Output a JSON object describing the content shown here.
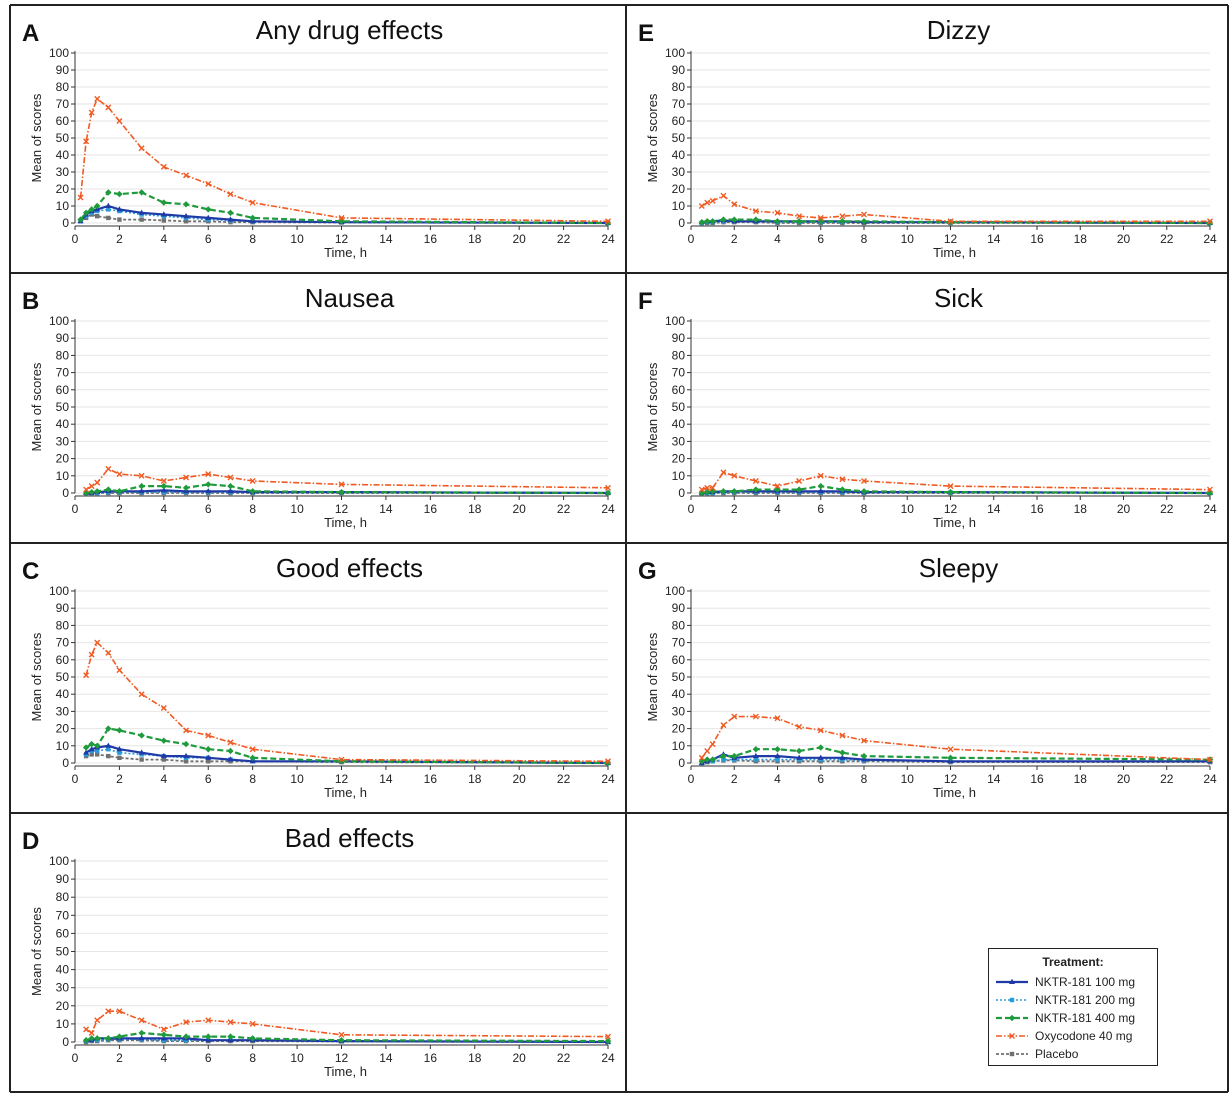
{
  "legend": {
    "title": "Treatment:",
    "items": [
      {
        "label": "NKTR-181 100 mg",
        "color": "#1f3aa6",
        "dash": "",
        "marker": "triangle",
        "width": 2.2
      },
      {
        "label": "NKTR-181 200 mg",
        "color": "#2a9ad9",
        "dash": "2,2",
        "marker": "square",
        "width": 1.6
      },
      {
        "label": "NKTR-181 400 mg",
        "color": "#1f9a3c",
        "dash": "6,3",
        "marker": "diamond",
        "width": 2.2
      },
      {
        "label": "Oxycodone 40 mg",
        "color": "#f05a22",
        "dash": "6,2,1.5,2",
        "marker": "x",
        "width": 1.6
      },
      {
        "label": "Placebo",
        "color": "#707070",
        "dash": "3,2",
        "marker": "square",
        "width": 1.8
      }
    ]
  },
  "chart_data": [
    {
      "panel": "A",
      "title": "Any drug effects",
      "type": "line",
      "xlabel": "Time, h",
      "ylabel": "Mean of scores",
      "xlim": [
        0,
        24
      ],
      "ylim": [
        0,
        100
      ],
      "xticks": [
        0,
        2,
        4,
        6,
        8,
        10,
        12,
        14,
        16,
        18,
        20,
        22,
        24
      ],
      "yticks": [
        0,
        10,
        20,
        30,
        40,
        50,
        60,
        70,
        80,
        90,
        100
      ],
      "x": [
        0.25,
        0.5,
        0.75,
        1,
        1.5,
        2,
        3,
        4,
        5,
        6,
        7,
        8,
        12,
        24
      ],
      "series": [
        {
          "name": "NKTR-181 100 mg",
          "values": [
            1,
            5,
            7,
            8,
            10,
            8,
            6,
            5,
            4,
            3,
            2,
            1,
            0.5,
            0
          ]
        },
        {
          "name": "NKTR-181 200 mg",
          "values": [
            1,
            4,
            6,
            7,
            8,
            7,
            5,
            4,
            3,
            2,
            1.5,
            1,
            0.5,
            0
          ]
        },
        {
          "name": "NKTR-181 400 mg",
          "values": [
            2,
            6,
            8,
            10,
            18,
            17,
            18,
            12,
            11,
            8,
            6,
            3,
            1,
            0
          ]
        },
        {
          "name": "Oxycodone 40 mg",
          "values": [
            15,
            48,
            65,
            73,
            68,
            60,
            44,
            33,
            28,
            23,
            17,
            12,
            3,
            1
          ]
        },
        {
          "name": "Placebo",
          "values": [
            1,
            3,
            5,
            4,
            3,
            2,
            2,
            1.5,
            1,
            1,
            0.5,
            0.5,
            0.3,
            0
          ]
        }
      ]
    },
    {
      "panel": "B",
      "title": "Nausea",
      "type": "line",
      "xlabel": "Time, h",
      "ylabel": "Mean of scores",
      "xlim": [
        0,
        24
      ],
      "ylim": [
        0,
        100
      ],
      "xticks": [
        0,
        2,
        4,
        6,
        8,
        10,
        12,
        14,
        16,
        18,
        20,
        22,
        24
      ],
      "yticks": [
        0,
        10,
        20,
        30,
        40,
        50,
        60,
        70,
        80,
        90,
        100
      ],
      "x": [
        0.5,
        0.75,
        1,
        1.5,
        2,
        3,
        4,
        5,
        6,
        7,
        8,
        12,
        24
      ],
      "series": [
        {
          "name": "NKTR-181 100 mg",
          "values": [
            0,
            0,
            0.5,
            1,
            1,
            1,
            1.5,
            1,
            1,
            1,
            0.5,
            0.5,
            0
          ]
        },
        {
          "name": "NKTR-181 200 mg",
          "values": [
            0,
            0,
            0,
            0.5,
            0.5,
            0.5,
            0.5,
            0.5,
            0.5,
            0.5,
            0.3,
            0.3,
            0
          ]
        },
        {
          "name": "NKTR-181 400 mg",
          "values": [
            0,
            0.5,
            1,
            2,
            1,
            4,
            4,
            3,
            5,
            4,
            1,
            0.5,
            0
          ]
        },
        {
          "name": "Oxycodone 40 mg",
          "values": [
            2,
            4,
            6,
            14,
            11,
            10,
            7,
            9,
            11,
            9,
            7,
            5,
            3
          ]
        },
        {
          "name": "Placebo",
          "values": [
            0,
            0,
            0,
            0,
            0,
            0,
            0,
            0,
            0,
            0,
            0,
            0,
            0
          ]
        }
      ]
    },
    {
      "panel": "C",
      "title": "Good effects",
      "type": "line",
      "xlabel": "Time, h",
      "ylabel": "Mean of scores",
      "xlim": [
        0,
        24
      ],
      "ylim": [
        0,
        100
      ],
      "xticks": [
        0,
        2,
        4,
        6,
        8,
        10,
        12,
        14,
        16,
        18,
        20,
        22,
        24
      ],
      "yticks": [
        0,
        10,
        20,
        30,
        40,
        50,
        60,
        70,
        80,
        90,
        100
      ],
      "x": [
        0.5,
        0.75,
        1,
        1.5,
        2,
        3,
        4,
        5,
        6,
        7,
        8,
        12,
        24
      ],
      "series": [
        {
          "name": "NKTR-181 100 mg",
          "values": [
            6,
            8,
            9,
            10,
            8,
            6,
            4,
            4,
            3,
            2,
            1,
            1,
            0
          ]
        },
        {
          "name": "NKTR-181 200 mg",
          "values": [
            5,
            7,
            7,
            8,
            6,
            5,
            4,
            3,
            3,
            2,
            1,
            1,
            0
          ]
        },
        {
          "name": "NKTR-181 400 mg",
          "values": [
            9,
            11,
            10,
            20,
            19,
            16,
            13,
            11,
            8,
            7,
            3,
            1,
            0
          ]
        },
        {
          "name": "Oxycodone 40 mg",
          "values": [
            51,
            63,
            70,
            64,
            54,
            40,
            32,
            19,
            16,
            12,
            8,
            2,
            1
          ]
        },
        {
          "name": "Placebo",
          "values": [
            4,
            5,
            5,
            4,
            3,
            2,
            2,
            1,
            1,
            1,
            1,
            0.5,
            0
          ]
        }
      ]
    },
    {
      "panel": "D",
      "title": "Bad effects",
      "type": "line",
      "xlabel": "Time, h",
      "ylabel": "Mean of scores",
      "xlim": [
        0,
        24
      ],
      "ylim": [
        0,
        100
      ],
      "xticks": [
        0,
        2,
        4,
        6,
        8,
        10,
        12,
        14,
        16,
        18,
        20,
        22,
        24
      ],
      "yticks": [
        0,
        10,
        20,
        30,
        40,
        50,
        60,
        70,
        80,
        90,
        100
      ],
      "x": [
        0.5,
        0.75,
        1,
        1.5,
        2,
        3,
        4,
        5,
        6,
        7,
        8,
        12,
        24
      ],
      "series": [
        {
          "name": "NKTR-181 100 mg",
          "values": [
            1,
            1,
            2,
            2,
            2,
            2,
            2,
            2,
            1,
            1,
            1,
            0.5,
            0
          ]
        },
        {
          "name": "NKTR-181 200 mg",
          "values": [
            0.5,
            1,
            1,
            1.5,
            1.5,
            1.5,
            1,
            1,
            1,
            1,
            1,
            0.5,
            0
          ]
        },
        {
          "name": "NKTR-181 400 mg",
          "values": [
            1,
            2,
            2,
            2,
            3,
            5,
            4,
            3,
            3,
            3,
            2,
            1,
            0.5
          ]
        },
        {
          "name": "Oxycodone 40 mg",
          "values": [
            7,
            5,
            12,
            17,
            17,
            12,
            7,
            11,
            12,
            11,
            10,
            4,
            3
          ]
        },
        {
          "name": "Placebo",
          "values": [
            0,
            0.5,
            0.5,
            1,
            1,
            1,
            0.5,
            0.5,
            0.5,
            0.5,
            0.5,
            0.3,
            0
          ]
        }
      ]
    },
    {
      "panel": "E",
      "title": "Dizzy",
      "type": "line",
      "xlabel": "Time, h",
      "ylabel": "Mean of scores",
      "xlim": [
        0,
        24
      ],
      "ylim": [
        0,
        100
      ],
      "xticks": [
        0,
        2,
        4,
        6,
        8,
        10,
        12,
        14,
        16,
        18,
        20,
        22,
        24
      ],
      "yticks": [
        0,
        10,
        20,
        30,
        40,
        50,
        60,
        70,
        80,
        90,
        100
      ],
      "x": [
        0.5,
        0.75,
        1,
        1.5,
        2,
        3,
        4,
        5,
        6,
        7,
        8,
        12,
        24
      ],
      "series": [
        {
          "name": "NKTR-181 100 mg",
          "values": [
            0.5,
            1,
            1,
            1.5,
            1,
            1,
            1,
            1,
            1,
            1,
            0.5,
            0.5,
            0
          ]
        },
        {
          "name": "NKTR-181 200 mg",
          "values": [
            0,
            0.5,
            0.5,
            1,
            1,
            1,
            0.5,
            0.5,
            0.5,
            0.5,
            0.5,
            0.3,
            0
          ]
        },
        {
          "name": "NKTR-181 400 mg",
          "values": [
            0.5,
            1,
            1,
            2,
            2,
            2,
            1,
            1,
            1,
            1,
            1,
            0.5,
            0
          ]
        },
        {
          "name": "Oxycodone 40 mg",
          "values": [
            10,
            12,
            13,
            16,
            11,
            7,
            6,
            4,
            3,
            4,
            5,
            1,
            1
          ]
        },
        {
          "name": "Placebo",
          "values": [
            0,
            0,
            0,
            0.5,
            0.5,
            0.5,
            0,
            0,
            0,
            0,
            0,
            0,
            0
          ]
        }
      ]
    },
    {
      "panel": "F",
      "title": "Sick",
      "type": "line",
      "xlabel": "Time, h",
      "ylabel": "Mean of scores",
      "xlim": [
        0,
        24
      ],
      "ylim": [
        0,
        100
      ],
      "xticks": [
        0,
        2,
        4,
        6,
        8,
        10,
        12,
        14,
        16,
        18,
        20,
        22,
        24
      ],
      "yticks": [
        0,
        10,
        20,
        30,
        40,
        50,
        60,
        70,
        80,
        90,
        100
      ],
      "x": [
        0.5,
        0.75,
        1,
        1.5,
        2,
        3,
        4,
        5,
        6,
        7,
        8,
        12,
        24
      ],
      "series": [
        {
          "name": "NKTR-181 100 mg",
          "values": [
            0,
            0.5,
            0.5,
            1,
            1,
            1,
            1,
            1,
            1,
            1,
            0.5,
            0.5,
            0
          ]
        },
        {
          "name": "NKTR-181 200 mg",
          "values": [
            0,
            0,
            0,
            0.5,
            0.5,
            0.5,
            0.5,
            0.5,
            0.5,
            0.5,
            0.3,
            0.3,
            0
          ]
        },
        {
          "name": "NKTR-181 400 mg",
          "values": [
            0,
            0.5,
            1,
            1,
            1,
            2,
            2,
            2,
            4,
            2,
            1,
            0.5,
            0
          ]
        },
        {
          "name": "Oxycodone 40 mg",
          "values": [
            2,
            3,
            3,
            12,
            10,
            7,
            4,
            7,
            10,
            8,
            7,
            4,
            2
          ]
        },
        {
          "name": "Placebo",
          "values": [
            0,
            0,
            0,
            0,
            0,
            0,
            0,
            0,
            0,
            0,
            0,
            0,
            0
          ]
        }
      ]
    },
    {
      "panel": "G",
      "title": "Sleepy",
      "type": "line",
      "xlabel": "Time, h",
      "ylabel": "Mean of scores",
      "xlim": [
        0,
        24
      ],
      "ylim": [
        0,
        100
      ],
      "xticks": [
        0,
        2,
        4,
        6,
        8,
        10,
        12,
        14,
        16,
        18,
        20,
        22,
        24
      ],
      "yticks": [
        0,
        10,
        20,
        30,
        40,
        50,
        60,
        70,
        80,
        90,
        100
      ],
      "x": [
        0.5,
        0.75,
        1,
        1.5,
        2,
        3,
        4,
        5,
        6,
        7,
        8,
        12,
        24
      ],
      "series": [
        {
          "name": "NKTR-181 100 mg",
          "values": [
            0,
            1,
            2,
            5,
            3,
            4,
            4,
            3,
            3,
            3,
            2,
            1,
            1
          ]
        },
        {
          "name": "NKTR-181 200 mg",
          "values": [
            0,
            1,
            1,
            2,
            2,
            2,
            2,
            2,
            2,
            2,
            1.5,
            1,
            1
          ]
        },
        {
          "name": "NKTR-181 400 mg",
          "values": [
            1,
            2,
            2,
            4,
            4,
            8,
            8,
            7,
            9,
            6,
            4,
            3,
            2
          ]
        },
        {
          "name": "Oxycodone 40 mg",
          "values": [
            3,
            7,
            11,
            22,
            27,
            27,
            26,
            21,
            19,
            16,
            13,
            8,
            2
          ]
        },
        {
          "name": "Placebo",
          "values": [
            0,
            0.5,
            1,
            1.5,
            1.5,
            1,
            1,
            1,
            1,
            1,
            1,
            0.5,
            0.5
          ]
        }
      ]
    }
  ]
}
